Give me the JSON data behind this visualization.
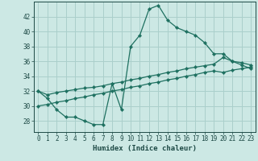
{
  "xlabel": "Humidex (Indice chaleur)",
  "ylabel": "",
  "background_color": "#cce8e4",
  "grid_color": "#aacfcb",
  "line_color": "#1e7060",
  "x_ticks": [
    0,
    1,
    2,
    3,
    4,
    5,
    6,
    7,
    8,
    9,
    10,
    11,
    12,
    13,
    14,
    15,
    16,
    17,
    18,
    19,
    20,
    21,
    22,
    23
  ],
  "y_ticks": [
    28,
    30,
    32,
    34,
    36,
    38,
    40,
    42
  ],
  "xlim": [
    -0.5,
    23.5
  ],
  "ylim": [
    26.5,
    44.0
  ],
  "series_max": [
    32.0,
    31.0,
    29.5,
    28.5,
    28.5,
    28.0,
    27.5,
    27.5,
    33.0,
    29.5,
    38.0,
    39.5,
    43.0,
    43.5,
    41.5,
    40.5,
    40.0,
    39.5,
    38.5,
    37.0,
    37.0,
    36.0,
    35.5,
    35.0
  ],
  "series_mean": [
    32.0,
    31.5,
    31.8,
    32.0,
    32.2,
    32.4,
    32.5,
    32.7,
    33.0,
    33.2,
    33.5,
    33.7,
    34.0,
    34.2,
    34.5,
    34.7,
    35.0,
    35.2,
    35.4,
    35.6,
    36.5,
    36.0,
    35.8,
    35.5
  ],
  "series_min": [
    30.0,
    30.2,
    30.5,
    30.7,
    31.0,
    31.2,
    31.5,
    31.7,
    32.0,
    32.2,
    32.5,
    32.7,
    33.0,
    33.2,
    33.5,
    33.7,
    34.0,
    34.2,
    34.5,
    34.7,
    34.5,
    34.8,
    35.0,
    35.2
  ]
}
